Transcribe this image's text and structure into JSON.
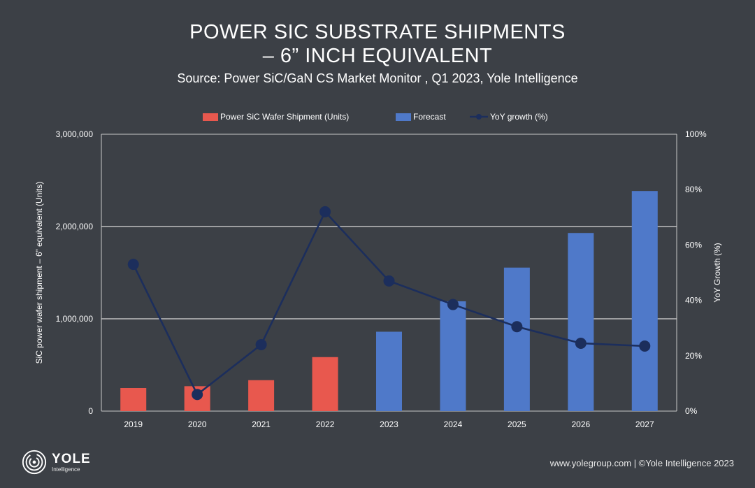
{
  "header": {
    "title_line1": "POWER SIC SUBSTRATE SHIPMENTS",
    "title_line2": "– 6” INCH EQUIVALENT",
    "subtitle": "Source: Power SiC/GaN CS Market Monitor , Q1 2023, Yole Intelligence"
  },
  "footer": {
    "logo_name": "YOLE",
    "logo_sub": "Intelligence",
    "copyright": "www.yolegroup.com | ©Yole Intelligence 2023"
  },
  "colors": {
    "shipment": "#e8584e",
    "forecast": "#4f79c9",
    "yoy": "#1c2e5c",
    "background": "#3c4046",
    "axis": "#c8c8c8"
  },
  "chart_data": {
    "type": "bar",
    "categories": [
      "2019",
      "2020",
      "2021",
      "2022",
      "2023",
      "2024",
      "2025",
      "2026",
      "2027"
    ],
    "series": [
      {
        "name": "Power SiC Wafer Shipment (Units)",
        "type": "bar",
        "axis": "left",
        "values": [
          250000,
          270000,
          335000,
          585000,
          null,
          null,
          null,
          null,
          null
        ]
      },
      {
        "name": "Forecast",
        "type": "bar",
        "axis": "left",
        "values": [
          null,
          null,
          null,
          null,
          860000,
          1190000,
          1555000,
          1930000,
          2385000
        ]
      },
      {
        "name": "YoY growth (%)",
        "type": "line",
        "axis": "right",
        "values": [
          53,
          6,
          24,
          72,
          47,
          38.5,
          30.5,
          24.5,
          23.5
        ]
      }
    ],
    "ylabel": "SiC power wafer shipment – 6” equivalent (Units)",
    "y2label": "YoY Growth (%)",
    "ylim": [
      0,
      3000000
    ],
    "y2lim": [
      0,
      100
    ],
    "yticks": [
      "0",
      "1,000,000",
      "2,000,000",
      "3,000,000"
    ],
    "y2ticks": [
      "0%",
      "20%",
      "40%",
      "60%",
      "80%",
      "100%"
    ],
    "grid": true,
    "legend_position": "top"
  }
}
